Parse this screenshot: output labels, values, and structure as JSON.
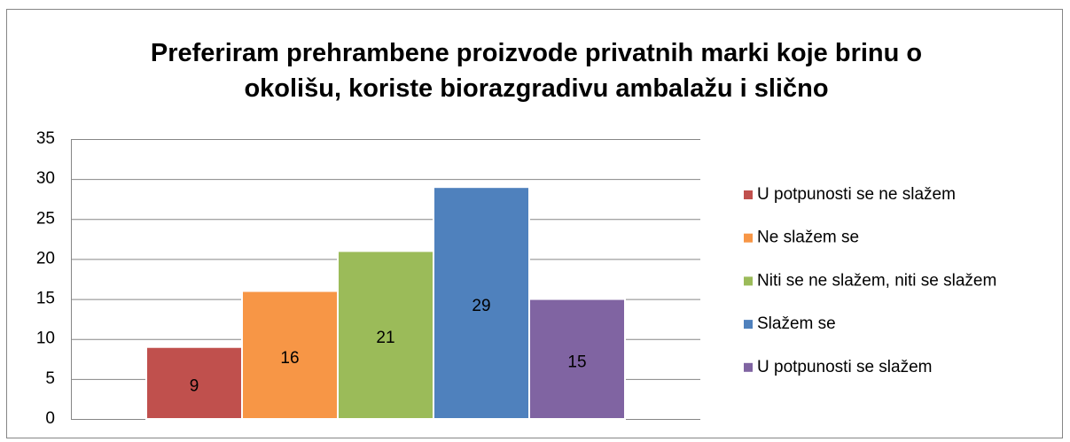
{
  "chart_data": {
    "type": "bar",
    "title": "Preferiram prehrambene proizvode privatnih marki koje brinu o okolišu, koriste biorazgradivu ambalažu i slično",
    "categories": [
      null
    ],
    "series": [
      {
        "name": "U potpunosti se ne slažem",
        "color": "#c0504d",
        "values": [
          9
        ]
      },
      {
        "name": "Ne slažem se",
        "color": "#f79646",
        "values": [
          16
        ]
      },
      {
        "name": "Niti se ne slažem, niti se slažem",
        "color": "#9bbb59",
        "values": [
          21
        ]
      },
      {
        "name": "Slažem se",
        "color": "#4f81bd",
        "values": [
          29
        ]
      },
      {
        "name": "U potpunosti se slažem",
        "color": "#8064a2",
        "values": [
          15
        ]
      }
    ],
    "ylim": [
      0,
      35
    ],
    "yticks": [
      0,
      5,
      10,
      15,
      20,
      25,
      30,
      35
    ],
    "grid": true,
    "legend": "right"
  }
}
